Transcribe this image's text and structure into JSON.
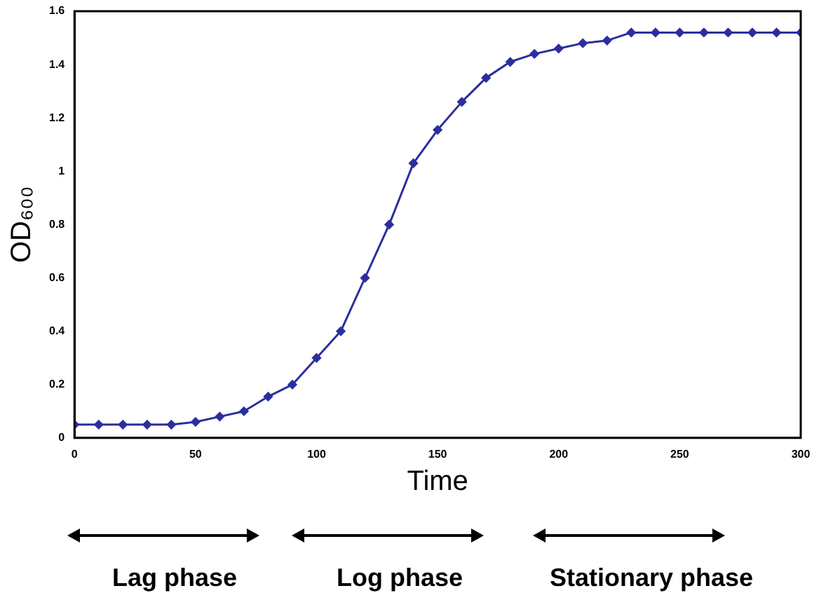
{
  "chart_data": {
    "type": "line",
    "ylabel": "OD₆₀₀",
    "xlabel": "Time",
    "x": [
      0,
      10,
      20,
      30,
      40,
      50,
      60,
      70,
      80,
      90,
      100,
      110,
      120,
      130,
      140,
      150,
      160,
      170,
      180,
      190,
      200,
      210,
      220,
      230,
      240,
      250,
      260,
      270,
      280,
      290,
      300
    ],
    "series": [
      {
        "color": "#2b2f9e",
        "values": [
          0.05,
          0.05,
          0.05,
          0.05,
          0.05,
          0.06,
          0.08,
          0.1,
          0.155,
          0.2,
          0.3,
          0.4,
          0.6,
          0.8,
          1.03,
          1.155,
          1.26,
          1.35,
          1.41,
          1.44,
          1.46,
          1.48,
          1.49,
          1.52,
          1.52,
          1.52,
          1.52,
          1.52,
          1.52,
          1.52,
          1.52
        ]
      }
    ],
    "xlim": [
      0,
      300
    ],
    "xticks": [
      0,
      50,
      100,
      150,
      200,
      250,
      300
    ],
    "ylim": [
      0,
      1.6
    ],
    "yticks": [
      0,
      0.2,
      0.4,
      0.6,
      0.8,
      1,
      1.2,
      1.4,
      1.6
    ],
    "grid": false,
    "legend": false,
    "marker": "diamond",
    "line_style": "solid",
    "annotations": [
      "Lag phase",
      "Log phase",
      "Stationary phase"
    ]
  }
}
